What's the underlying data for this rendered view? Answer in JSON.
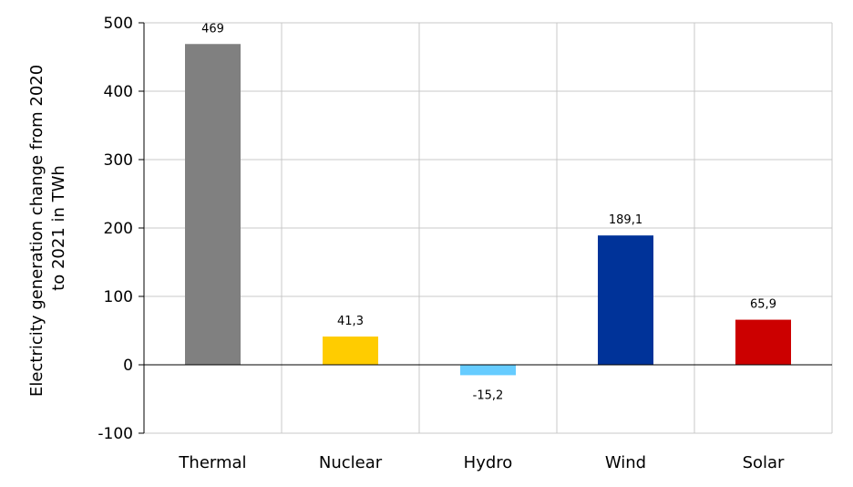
{
  "chart_data": {
    "type": "bar",
    "categories": [
      "Thermal",
      "Nuclear",
      "Hydro",
      "Wind",
      "Solar"
    ],
    "values": [
      469,
      41.3,
      -15.2,
      189.1,
      65.9
    ],
    "value_labels": [
      "469",
      "41,3",
      "-15,2",
      "189,1",
      "65,9"
    ],
    "colors": [
      "#808080",
      "#ffcc00",
      "#66ccff",
      "#003399",
      "#cc0000"
    ],
    "ylabel_lines": [
      "Electricity generation change from 2020",
      "to 2021 in TWh"
    ],
    "ylim": [
      -100,
      500
    ],
    "yticks": [
      500,
      400,
      300,
      200,
      100,
      0,
      -100
    ],
    "ytick_labels": [
      "500",
      "400",
      "300",
      "200",
      "100",
      "0",
      "-100"
    ],
    "grid": true,
    "legend": "none"
  }
}
